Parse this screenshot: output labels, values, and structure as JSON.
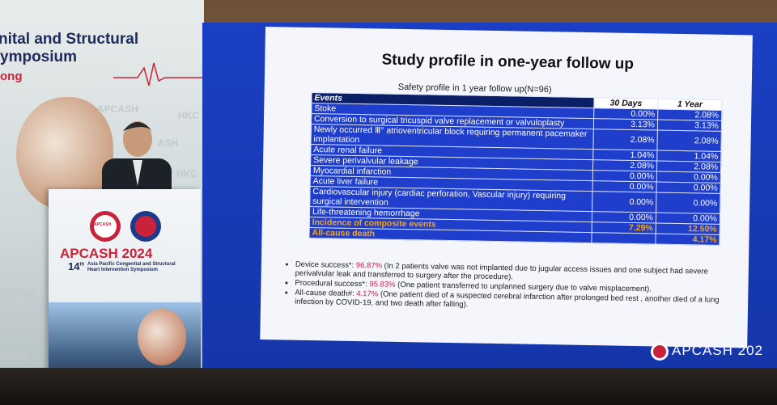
{
  "banner": {
    "title_line1": "nital and Structural",
    "title_line2": "ymposium",
    "title_line3": "ong",
    "watermarks": [
      "APCASH",
      "HKC",
      "ASH",
      "HKC",
      "KCASH",
      "AP",
      "CASH"
    ]
  },
  "podium": {
    "logo_text": "APCASH",
    "brand": "APCASH 2024",
    "edition": "14",
    "edition_suffix": "th",
    "subtitle": "Asia Pacific Congenital and Structural Heart Intervention Symposium"
  },
  "slide": {
    "title": "Study profile in one-year follow up",
    "subtitle": "Safety profile in 1 year follow up(N=96)",
    "table": {
      "headers": [
        "Events",
        "30 Days",
        "1 Year"
      ],
      "rows": [
        [
          "Stoke",
          "0.00%",
          "2.08%"
        ],
        [
          "Conversion to surgical tricuspid valve replacement or valvuloplasty",
          "3.13%",
          "3.13%"
        ],
        [
          "Newly occurred Ⅲ° atrioventricular block requiring permanent pacemaker implantation",
          "2.08%",
          "2.08%"
        ],
        [
          "Acute renal failure",
          "1.04%",
          "1.04%"
        ],
        [
          "Severe perivalvular leakage",
          "2.08%",
          "2.08%"
        ],
        [
          "Myocardial infarction",
          "0.00%",
          "0.00%"
        ],
        [
          "Acute liver failure",
          "0.00%",
          "0.00%"
        ],
        [
          "Cardiovascular injury (cardiac perforation, Vascular injury) requiring surgical intervention",
          "0.00%",
          "0.00%"
        ],
        [
          "Life-threatening hemorrhage",
          "0.00%",
          "0.00%"
        ],
        [
          "Incidence of composite events",
          "7.29%",
          "12.50%"
        ],
        [
          "All-cause death",
          null,
          "4.17%"
        ]
      ]
    },
    "bullets": [
      {
        "label": "Device success*: ",
        "value": "96.87%",
        "text": " (In 2 patients valve was not implanted due to jugular access issues and one subject had severe perivalvular leak and transferred to surgery after the procedure)."
      },
      {
        "label": "Procedural success*: ",
        "value": "95.83%",
        "text": " (One patient transferred to unplanned surgery due to valve misplacement)."
      },
      {
        "label": "All-cause death#: ",
        "value": "4.17%",
        "text": " (One patient died of a suspected cerebral infarction after prolonged bed rest , another died of a lung infection by COVID-19, and two death after falling)."
      }
    ]
  },
  "screen_brand": "APCASH 202"
}
